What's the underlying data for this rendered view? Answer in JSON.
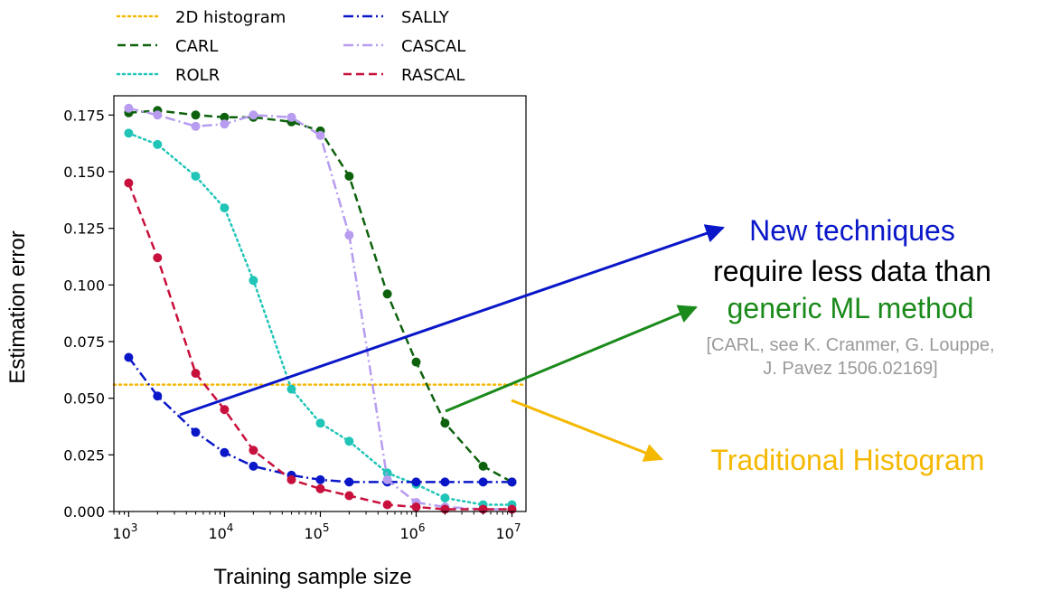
{
  "chart_data": {
    "type": "line",
    "xlabel": "Training sample size",
    "ylabel": "Estimation error",
    "x_scale": "log",
    "xlim": [
      700,
      14000000
    ],
    "ylim": [
      0.0,
      0.175
    ],
    "x_ticks": [
      {
        "value": 1000,
        "base": "10",
        "exp": "3"
      },
      {
        "value": 10000,
        "base": "10",
        "exp": "4"
      },
      {
        "value": 100000,
        "base": "10",
        "exp": "5"
      },
      {
        "value": 1000000,
        "base": "10",
        "exp": "6"
      },
      {
        "value": 10000000,
        "base": "10",
        "exp": "7"
      }
    ],
    "y_ticks": [
      {
        "value": 0.0,
        "label": "0.000"
      },
      {
        "value": 0.025,
        "label": "0.025"
      },
      {
        "value": 0.05,
        "label": "0.050"
      },
      {
        "value": 0.075,
        "label": "0.075"
      },
      {
        "value": 0.1,
        "label": "0.100"
      },
      {
        "value": 0.125,
        "label": "0.125"
      },
      {
        "value": 0.15,
        "label": "0.150"
      },
      {
        "value": 0.175,
        "label": "0.175"
      }
    ],
    "legend_placement": "top, outside plot, two columns",
    "series": [
      {
        "name": "2D histogram",
        "color": "#f5b800",
        "dash": "dotted",
        "markers": false,
        "x": [
          700,
          14000000
        ],
        "y": [
          0.056,
          0.056
        ]
      },
      {
        "name": "CARL",
        "color": "#0e620e",
        "dash": "dashed",
        "markers": true,
        "x": [
          1000,
          2000,
          5000,
          10000,
          20000,
          50000,
          100000,
          200000,
          500000,
          1000000,
          2000000,
          5000000,
          10000000
        ],
        "y": [
          0.176,
          0.177,
          0.175,
          0.174,
          0.174,
          0.172,
          0.168,
          0.148,
          0.096,
          0.066,
          0.039,
          0.02,
          0.013
        ]
      },
      {
        "name": "ROLR",
        "color": "#20c5b8",
        "dash": "dotted",
        "markers": true,
        "x": [
          1000,
          2000,
          5000,
          10000,
          20000,
          50000,
          100000,
          200000,
          500000,
          1000000,
          2000000,
          5000000,
          10000000
        ],
        "y": [
          0.167,
          0.162,
          0.148,
          0.134,
          0.102,
          0.054,
          0.039,
          0.031,
          0.017,
          0.012,
          0.006,
          0.003,
          0.003
        ]
      },
      {
        "name": "SALLY",
        "color": "#0a17c8",
        "dash": "dashdot",
        "markers": true,
        "x": [
          1000,
          2000,
          5000,
          10000,
          20000,
          50000,
          100000,
          200000,
          500000,
          1000000,
          2000000,
          5000000,
          10000000
        ],
        "y": [
          0.068,
          0.051,
          0.035,
          0.026,
          0.02,
          0.016,
          0.014,
          0.013,
          0.013,
          0.013,
          0.013,
          0.013,
          0.013
        ]
      },
      {
        "name": "CASCAL",
        "color": "#b79cf0",
        "dash": "dashdot",
        "markers": true,
        "x": [
          1000,
          2000,
          5000,
          10000,
          20000,
          50000,
          100000,
          200000,
          500000,
          1000000,
          2000000,
          5000000,
          10000000
        ],
        "y": [
          0.178,
          0.175,
          0.17,
          0.171,
          0.175,
          0.174,
          0.166,
          0.122,
          0.014,
          0.004,
          0.002,
          0.001,
          0.001
        ]
      },
      {
        "name": "RASCAL",
        "color": "#c8103c",
        "dash": "dashed",
        "markers": true,
        "x": [
          1000,
          2000,
          5000,
          10000,
          20000,
          50000,
          100000,
          200000,
          500000,
          1000000,
          2000000,
          5000000,
          10000000
        ],
        "y": [
          0.145,
          0.112,
          0.061,
          0.045,
          0.027,
          0.014,
          0.01,
          0.007,
          0.003,
          0.002,
          0.001,
          0.001,
          0.001
        ]
      }
    ],
    "legend_order": [
      0,
      3,
      1,
      4,
      2,
      5
    ]
  },
  "annotations": {
    "new_techniques": "New techniques",
    "require_less": "require less data than",
    "generic_ml": "generic ML method",
    "ref_line1": "[CARL, see K. Cranmer, G. Louppe,",
    "ref_line2": "J. Pavez 1506.02169]",
    "traditional": "Traditional Histogram"
  },
  "colors": {
    "annotation_blue": "#0a17c8",
    "annotation_green": "#1a8a1a",
    "annotation_gold": "#f5b800",
    "annotation_gray": "#9a9a9a"
  }
}
